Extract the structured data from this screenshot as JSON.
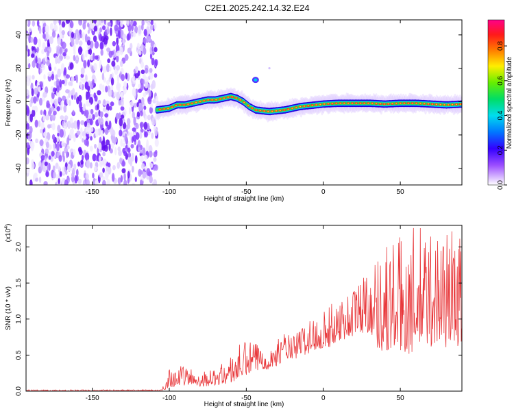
{
  "title": "C2E1.2025.242.14.32.E24",
  "chart_data": [
    {
      "type": "heatmap",
      "xlabel": "Height of straight line (km)",
      "ylabel": "Frequency (Hz)",
      "xlim": [
        -193,
        90
      ],
      "ylim": [
        -50,
        49
      ],
      "xticks": [
        -150,
        -100,
        -50,
        0,
        50
      ],
      "yticks": [
        -40,
        -20,
        0,
        20,
        40
      ],
      "noise_region_x": [
        -193,
        -108
      ],
      "ridge": {
        "x": [
          -108,
          -100,
          -95,
          -90,
          -85,
          -80,
          -75,
          -70,
          -65,
          -60,
          -56,
          -52,
          -48,
          -44,
          -40,
          -35,
          -30,
          -25,
          -20,
          -15,
          -10,
          -5,
          0,
          10,
          20,
          30,
          40,
          50,
          60,
          70,
          80,
          90
        ],
        "freq": [
          -5,
          -4,
          -2,
          -2,
          -1,
          0,
          1,
          1,
          2,
          3,
          2,
          0,
          -3,
          -5,
          -5.5,
          -6,
          -5.5,
          -5,
          -4,
          -3,
          -2.5,
          -2,
          -1.5,
          -1,
          -1,
          -1,
          -1.5,
          -1,
          -1,
          -1.5,
          -2,
          -1.5
        ]
      },
      "colorbar": {
        "label": "Normalized spectral amplitude",
        "ticks": [
          0.0,
          0.2,
          0.4,
          0.6,
          0.8
        ],
        "range": [
          0,
          0.95
        ]
      }
    },
    {
      "type": "line",
      "xlabel": "Height of straight line (km)",
      "ylabel": "SNR (10 * v/v)",
      "scale_label_base": "(x10",
      "scale_label_exp": "4",
      "scale_label_end": ")",
      "xlim": [
        -193,
        90
      ],
      "ylim": [
        0,
        2.3
      ],
      "xticks": [
        -150,
        -100,
        -50,
        0,
        50
      ],
      "yticks": [
        0.0,
        0.5,
        1.0,
        1.5,
        2.0
      ],
      "series": [
        {
          "name": "SNR",
          "color": "#e8373a",
          "envelope_x": [
            -193,
            -105,
            -100,
            -90,
            -80,
            -70,
            -60,
            -55,
            -50,
            -45,
            -40,
            -35,
            -30,
            -25,
            -20,
            -15,
            -10,
            -5,
            0,
            5,
            10,
            15,
            20,
            25,
            30,
            35,
            40,
            50,
            60,
            70,
            80,
            90
          ],
          "envelope_lo": [
            0.0,
            0.0,
            0.05,
            0.08,
            0.06,
            0.08,
            0.1,
            0.15,
            0.2,
            0.25,
            0.3,
            0.3,
            0.35,
            0.45,
            0.4,
            0.5,
            0.5,
            0.55,
            0.6,
            0.6,
            0.7,
            0.7,
            0.75,
            0.8,
            0.8,
            0.6,
            0.5,
            0.5,
            0.5,
            0.6,
            0.6,
            0.6
          ],
          "envelope_hi": [
            0.02,
            0.02,
            0.35,
            0.35,
            0.28,
            0.3,
            0.5,
            0.65,
            0.7,
            0.7,
            0.65,
            0.6,
            0.7,
            0.85,
            0.75,
            0.9,
            1.0,
            1.05,
            1.15,
            1.2,
            1.35,
            1.35,
            1.5,
            1.65,
            1.8,
            1.9,
            2.1,
            2.2,
            2.3,
            2.3,
            2.3,
            2.3
          ]
        }
      ]
    }
  ]
}
